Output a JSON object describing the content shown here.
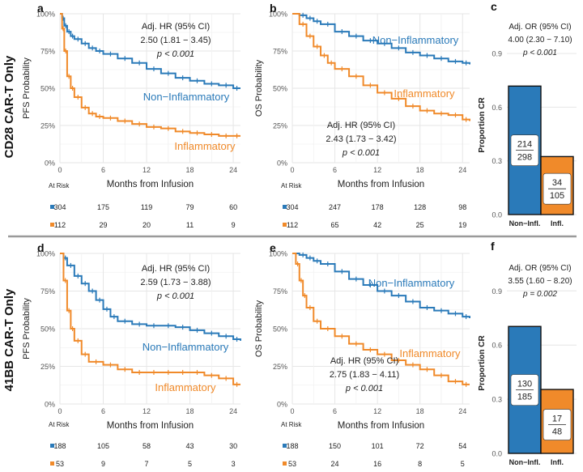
{
  "rows": [
    {
      "row_label": "CD28 CAR-T Only",
      "panels": [
        {
          "letter": "a",
          "ylabel": "PFS Probability",
          "xlabel": "Months from Infusion",
          "annotation": [
            "Adj. HR (95% CI)",
            "2.50 (1.81 − 3.45)",
            "p < 0.001"
          ],
          "non_label": "Non−Inflammatory",
          "inf_label": "Inflammatory",
          "risk_label": "At Risk",
          "risk_times": [
            0,
            6,
            12,
            18,
            24
          ],
          "risk_non": [
            "304",
            "175",
            "119",
            "79",
            "60"
          ],
          "risk_inf": [
            "112",
            "29",
            "20",
            "11",
            "9"
          ]
        },
        {
          "letter": "b",
          "ylabel": "OS Probability",
          "xlabel": "Months from Infusion",
          "annotation": [
            "Adj. HR (95% CI)",
            "2.43 (1.73 − 3.42)",
            "p < 0.001"
          ],
          "non_label": "Non−Inflammatory",
          "inf_label": "Inflammatory",
          "risk_label": "At Risk",
          "risk_times": [
            0,
            6,
            12,
            18,
            24
          ],
          "risk_non": [
            "304",
            "247",
            "178",
            "128",
            "98"
          ],
          "risk_inf": [
            "112",
            "65",
            "42",
            "25",
            "19"
          ]
        },
        {
          "letter": "c",
          "ylabel": "Proportion CR",
          "annotation": [
            "Adj. OR (95% CI)",
            "4.00 (2.30 − 7.10)",
            "p < 0.001"
          ],
          "bar_labels": [
            "Non−Infl.",
            "Infl."
          ],
          "fractions": [
            [
              "214",
              "298"
            ],
            [
              "34",
              "105"
            ]
          ]
        }
      ]
    },
    {
      "row_label": "41BB CAR-T Only",
      "panels": [
        {
          "letter": "d",
          "ylabel": "PFS Probability",
          "xlabel": "Months from Infusion",
          "annotation": [
            "Adj. HR (95% CI)",
            "2.59 (1.73 − 3.88)",
            "p < 0.001"
          ],
          "non_label": "Non−Inflammatory",
          "inf_label": "Inflammatory",
          "risk_label": "At Risk",
          "risk_times": [
            0,
            6,
            12,
            18,
            24
          ],
          "risk_non": [
            "188",
            "105",
            "58",
            "43",
            "30"
          ],
          "risk_inf": [
            "53",
            "9",
            "7",
            "5",
            "3"
          ]
        },
        {
          "letter": "e",
          "ylabel": "OS Probability",
          "xlabel": "Months from Infusion",
          "annotation": [
            "Adj. HR (95% CI)",
            "2.75 (1.83 − 4.11)",
            "p < 0.001"
          ],
          "non_label": "Non−Inflammatory",
          "inf_label": "Inflammatory",
          "risk_label": "At Risk",
          "risk_times": [
            0,
            6,
            12,
            18,
            24
          ],
          "risk_non": [
            "188",
            "150",
            "101",
            "72",
            "54"
          ],
          "risk_inf": [
            "53",
            "24",
            "16",
            "8",
            "5"
          ]
        },
        {
          "letter": "f",
          "ylabel": "Proportion CR",
          "annotation": [
            "Adj. OR (95% CI)",
            "3.55 (1.60 − 8.20)",
            "p = 0.002"
          ],
          "bar_labels": [
            "Non−Infl.",
            "Infl."
          ],
          "fractions": [
            [
              "130",
              "185"
            ],
            [
              "17",
              "48"
            ]
          ]
        }
      ]
    }
  ],
  "chart_data": [
    {
      "type": "line",
      "id": "a",
      "title": "",
      "xlabel": "Months from Infusion",
      "ylabel": "PFS Probability",
      "xlim": [
        0,
        25
      ],
      "ylim": [
        0,
        1
      ],
      "xticks": [
        0,
        6,
        12,
        18,
        24
      ],
      "yticks": [
        "0%",
        "25%",
        "50%",
        "75%",
        "100%"
      ],
      "series": [
        {
          "name": "Non−Inflammatory",
          "color": "#2a7ab9",
          "x": [
            0,
            0.3,
            0.6,
            1,
            1.5,
            2,
            3,
            4,
            5,
            6,
            8,
            10,
            12,
            14,
            16,
            18,
            20,
            22,
            24,
            25
          ],
          "y": [
            1,
            0.97,
            0.92,
            0.88,
            0.85,
            0.83,
            0.8,
            0.77,
            0.75,
            0.73,
            0.7,
            0.67,
            0.63,
            0.6,
            0.57,
            0.55,
            0.53,
            0.52,
            0.5,
            0.5
          ]
        },
        {
          "name": "Inflammatory",
          "color": "#f08a2a",
          "x": [
            0,
            0.3,
            0.6,
            1,
            1.5,
            2,
            3,
            4,
            5,
            6,
            8,
            10,
            12,
            14,
            16,
            18,
            20,
            22,
            24,
            25
          ],
          "y": [
            1,
            0.9,
            0.75,
            0.58,
            0.5,
            0.44,
            0.37,
            0.33,
            0.31,
            0.3,
            0.28,
            0.26,
            0.24,
            0.23,
            0.21,
            0.2,
            0.19,
            0.18,
            0.18,
            0.18
          ]
        }
      ],
      "annotations": [
        "Adj. HR (95% CI)",
        "2.50 (1.81 − 3.45)",
        "p < 0.001"
      ],
      "risk_table": {
        "times": [
          0,
          6,
          12,
          18,
          24
        ],
        "Non−Inflammatory": [
          304,
          175,
          119,
          79,
          60
        ],
        "Inflammatory": [
          112,
          29,
          20,
          11,
          9
        ]
      }
    },
    {
      "type": "line",
      "id": "b",
      "title": "",
      "xlabel": "Months from Infusion",
      "ylabel": "OS Probability",
      "xlim": [
        0,
        25
      ],
      "ylim": [
        0,
        1
      ],
      "xticks": [
        0,
        6,
        12,
        18,
        24
      ],
      "yticks": [
        "0%",
        "25%",
        "50%",
        "75%",
        "100%"
      ],
      "series": [
        {
          "name": "Non−Inflammatory",
          "color": "#2a7ab9",
          "x": [
            0,
            1,
            2,
            3,
            4,
            6,
            8,
            10,
            12,
            14,
            16,
            18,
            20,
            22,
            24,
            25
          ],
          "y": [
            1,
            0.99,
            0.97,
            0.95,
            0.93,
            0.88,
            0.85,
            0.82,
            0.8,
            0.77,
            0.74,
            0.72,
            0.7,
            0.68,
            0.67,
            0.66
          ]
        },
        {
          "name": "Inflammatory",
          "color": "#f08a2a",
          "x": [
            0,
            1,
            2,
            3,
            4,
            5,
            6,
            8,
            10,
            12,
            14,
            16,
            18,
            20,
            22,
            24,
            25
          ],
          "y": [
            1,
            0.93,
            0.85,
            0.78,
            0.72,
            0.67,
            0.63,
            0.58,
            0.52,
            0.47,
            0.43,
            0.38,
            0.35,
            0.33,
            0.32,
            0.29,
            0.28
          ]
        }
      ],
      "annotations": [
        "Adj. HR (95% CI)",
        "2.43 (1.73 − 3.42)",
        "p < 0.001"
      ],
      "risk_table": {
        "times": [
          0,
          6,
          12,
          18,
          24
        ],
        "Non−Inflammatory": [
          304,
          247,
          178,
          128,
          98
        ],
        "Inflammatory": [
          112,
          65,
          42,
          25,
          19
        ]
      }
    },
    {
      "type": "bar",
      "id": "c",
      "title": "",
      "ylabel": "Proportion CR",
      "ylim": [
        0,
        1.0
      ],
      "yticks": [
        0.0,
        0.3,
        0.6,
        0.9
      ],
      "categories": [
        "Non−Infl.",
        "Infl."
      ],
      "values": [
        0.718,
        0.324
      ],
      "colors": [
        "#2a7ab9",
        "#f08a2a"
      ],
      "fractions": [
        "214/298",
        "34/105"
      ],
      "annotations": [
        "Adj. OR (95% CI)",
        "4.00 (2.30 − 7.10)",
        "p < 0.001"
      ]
    },
    {
      "type": "line",
      "id": "d",
      "title": "",
      "xlabel": "Months from Infusion",
      "ylabel": "PFS Probability",
      "xlim": [
        0,
        25
      ],
      "ylim": [
        0,
        1
      ],
      "xticks": [
        0,
        6,
        12,
        18,
        24
      ],
      "yticks": [
        "0%",
        "25%",
        "50%",
        "75%",
        "100%"
      ],
      "series": [
        {
          "name": "Non−Inflammatory",
          "color": "#2a7ab9",
          "x": [
            0,
            0.5,
            1,
            2,
            3,
            4,
            5,
            6,
            7,
            8,
            10,
            12,
            14,
            16,
            18,
            20,
            22,
            24,
            25
          ],
          "y": [
            1,
            0.97,
            0.92,
            0.85,
            0.8,
            0.75,
            0.69,
            0.63,
            0.58,
            0.55,
            0.53,
            0.52,
            0.52,
            0.51,
            0.49,
            0.47,
            0.45,
            0.43,
            0.42
          ]
        },
        {
          "name": "Inflammatory",
          "color": "#f08a2a",
          "x": [
            0,
            0.5,
            1,
            1.5,
            2,
            3,
            4,
            6,
            8,
            10,
            12,
            14,
            16,
            18,
            20,
            22,
            24,
            25
          ],
          "y": [
            1,
            0.82,
            0.62,
            0.5,
            0.42,
            0.33,
            0.28,
            0.26,
            0.23,
            0.21,
            0.21,
            0.21,
            0.21,
            0.21,
            0.19,
            0.17,
            0.13,
            0.13
          ]
        }
      ],
      "annotations": [
        "Adj. HR (95% CI)",
        "2.59 (1.73 − 3.88)",
        "p < 0.001"
      ],
      "risk_table": {
        "times": [
          0,
          6,
          12,
          18,
          24
        ],
        "Non−Inflammatory": [
          188,
          105,
          58,
          43,
          30
        ],
        "Inflammatory": [
          53,
          9,
          7,
          5,
          3
        ]
      }
    },
    {
      "type": "line",
      "id": "e",
      "title": "",
      "xlabel": "Months from Infusion",
      "ylabel": "OS Probability",
      "xlim": [
        0,
        25
      ],
      "ylim": [
        0,
        1
      ],
      "xticks": [
        0,
        6,
        12,
        18,
        24
      ],
      "yticks": [
        "0%",
        "25%",
        "50%",
        "75%",
        "100%"
      ],
      "series": [
        {
          "name": "Non−Inflammatory",
          "color": "#2a7ab9",
          "x": [
            0,
            1,
            2,
            3,
            4,
            6,
            8,
            10,
            12,
            14,
            16,
            18,
            20,
            22,
            24,
            25
          ],
          "y": [
            1,
            0.99,
            0.97,
            0.95,
            0.93,
            0.88,
            0.83,
            0.79,
            0.75,
            0.72,
            0.68,
            0.64,
            0.62,
            0.6,
            0.58,
            0.57
          ]
        },
        {
          "name": "Inflammatory",
          "color": "#f08a2a",
          "x": [
            0,
            0.5,
            1,
            1.5,
            2,
            3,
            4,
            6,
            8,
            10,
            12,
            14,
            16,
            18,
            20,
            22,
            24,
            25
          ],
          "y": [
            1,
            0.93,
            0.82,
            0.72,
            0.64,
            0.55,
            0.5,
            0.45,
            0.4,
            0.36,
            0.33,
            0.29,
            0.26,
            0.23,
            0.19,
            0.15,
            0.13,
            0.13
          ]
        }
      ],
      "annotations": [
        "Adj. HR (95% CI)",
        "2.75 (1.83 − 4.11)",
        "p < 0.001"
      ],
      "risk_table": {
        "times": [
          0,
          6,
          12,
          18,
          24
        ],
        "Non−Inflammatory": [
          188,
          150,
          101,
          72,
          54
        ],
        "Inflammatory": [
          53,
          24,
          16,
          8,
          5
        ]
      }
    },
    {
      "type": "bar",
      "id": "f",
      "title": "",
      "ylabel": "Proportion CR",
      "ylim": [
        0,
        1.0
      ],
      "yticks": [
        0.0,
        0.3,
        0.6,
        0.9
      ],
      "categories": [
        "Non−Infl.",
        "Infl."
      ],
      "values": [
        0.703,
        0.354
      ],
      "colors": [
        "#2a7ab9",
        "#f08a2a"
      ],
      "fractions": [
        "130/185",
        "17/48"
      ],
      "annotations": [
        "Adj. OR (95% CI)",
        "3.55 (1.60 − 8.20)",
        "p = 0.002"
      ]
    }
  ]
}
